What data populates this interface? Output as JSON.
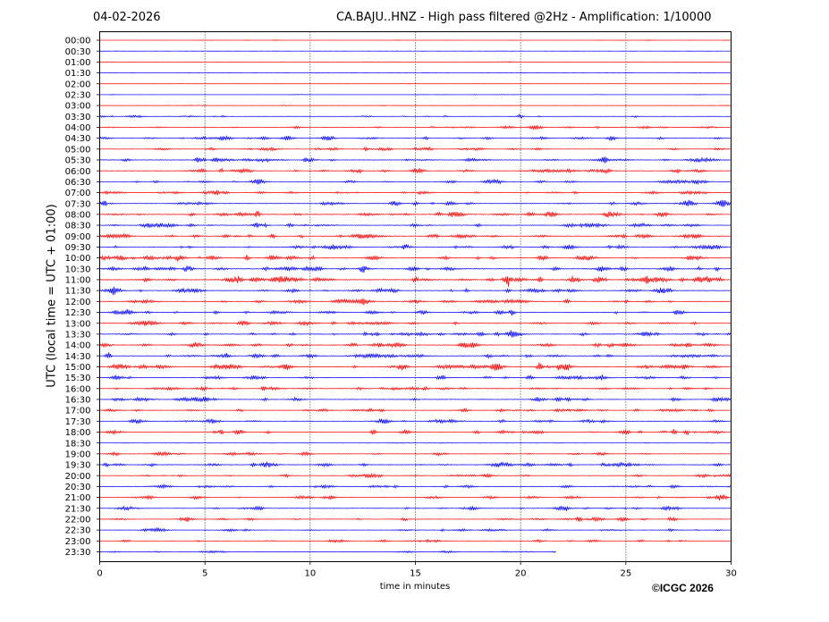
{
  "header": {
    "date": "04-02-2026",
    "title": "CA.BAJU..HNZ - High pass filtered @2Hz - Amplification: 1/10000"
  },
  "footer": {
    "copyright": "©ICGC 2026"
  },
  "chart_data": {
    "type": "line",
    "title": "CA.BAJU..HNZ - High pass filtered @2Hz - Amplification: 1/10000",
    "xlabel": "time in minutes",
    "ylabel": "UTC (local time = UTC + 01:00)",
    "xlim": [
      0,
      30
    ],
    "x_ticks": [
      0,
      5,
      10,
      15,
      20,
      25,
      30
    ],
    "x_tick_labels": [
      "0",
      "5",
      "10",
      "15",
      "20",
      "25",
      "30"
    ],
    "vertical_gridlines_at": [
      5,
      10,
      15,
      20,
      25
    ],
    "rows": [
      "00:00",
      "00:30",
      "01:00",
      "01:30",
      "02:00",
      "02:30",
      "03:00",
      "03:30",
      "04:00",
      "04:30",
      "05:00",
      "05:30",
      "06:00",
      "06:30",
      "07:00",
      "07:30",
      "08:00",
      "08:30",
      "09:00",
      "09:30",
      "10:00",
      "10:30",
      "11:00",
      "11:30",
      "12:00",
      "12:30",
      "13:00",
      "13:30",
      "14:00",
      "14:30",
      "15:00",
      "15:30",
      "16:00",
      "16:30",
      "17:00",
      "17:30",
      "18:00",
      "18:30",
      "19:00",
      "19:30",
      "20:00",
      "20:30",
      "21:00",
      "21:30",
      "22:00",
      "22:30",
      "23:00",
      "23:30"
    ],
    "row_colors": [
      "#ff0000",
      "#0000ff"
    ],
    "activity_level": [
      0.1,
      0.1,
      0.1,
      0.1,
      0.1,
      0.1,
      0.1,
      0.25,
      0.35,
      0.45,
      0.4,
      0.5,
      0.5,
      0.4,
      0.45,
      0.5,
      0.55,
      0.5,
      0.55,
      0.5,
      0.6,
      0.65,
      0.7,
      0.55,
      0.5,
      0.5,
      0.5,
      0.55,
      0.55,
      0.55,
      0.6,
      0.5,
      0.5,
      0.5,
      0.45,
      0.45,
      0.45,
      0.15,
      0.4,
      0.5,
      0.4,
      0.4,
      0.4,
      0.4,
      0.4,
      0.35,
      0.35,
      0.3
    ],
    "row_end_minute": [
      30,
      30,
      30,
      30,
      30,
      30,
      30,
      30,
      30,
      30,
      30,
      30,
      30,
      30,
      30,
      30,
      30,
      30,
      30,
      30,
      30,
      30,
      30,
      30,
      30,
      30,
      30,
      30,
      30,
      30,
      30,
      30,
      30,
      30,
      30,
      30,
      30,
      30,
      30,
      30,
      30,
      30,
      30,
      30,
      30,
      30,
      30,
      21.7
    ],
    "events": [
      {
        "row": "03:30",
        "minute": 20.0,
        "amp": 0.35
      },
      {
        "row": "04:30",
        "minute": 15.5,
        "amp": 0.35
      },
      {
        "row": "05:30",
        "minute": 4.6,
        "amp": 0.35
      },
      {
        "row": "06:00",
        "minute": 27.5,
        "amp": 0.3
      },
      {
        "row": "07:30",
        "minute": 15.0,
        "amp": 0.3
      },
      {
        "row": "08:00",
        "minute": 7.5,
        "amp": 0.5
      },
      {
        "row": "10:00",
        "minute": 7.0,
        "amp": 0.45
      },
      {
        "row": "10:30",
        "minute": 12.5,
        "amp": 0.45
      },
      {
        "row": "11:00",
        "minute": 15.0,
        "amp": 0.6
      },
      {
        "row": "11:00",
        "minute": 19.4,
        "amp": 1.0
      },
      {
        "row": "11:00",
        "minute": 20.9,
        "amp": 0.5
      },
      {
        "row": "12:00",
        "minute": 22.2,
        "amp": 0.55
      },
      {
        "row": "12:30",
        "minute": 19.6,
        "amp": 0.5
      },
      {
        "row": "14:30",
        "minute": 0.4,
        "amp": 0.6
      },
      {
        "row": "15:00",
        "minute": 14.3,
        "amp": 0.6
      },
      {
        "row": "15:00",
        "minute": 20.9,
        "amp": 0.8
      },
      {
        "row": "15:00",
        "minute": 21.9,
        "amp": 0.7
      },
      {
        "row": "15:00",
        "minute": 22.2,
        "amp": 0.6
      },
      {
        "row": "16:00",
        "minute": 7.8,
        "amp": 0.4
      },
      {
        "row": "18:00",
        "minute": 13.0,
        "amp": 0.45
      },
      {
        "row": "18:00",
        "minute": 17.9,
        "amp": 0.4
      },
      {
        "row": "18:00",
        "minute": 27.3,
        "amp": 0.45
      },
      {
        "row": "18:00",
        "minute": 27.9,
        "amp": 0.45
      },
      {
        "row": "19:30",
        "minute": 0.3,
        "amp": 0.35
      },
      {
        "row": "19:30",
        "minute": 7.3,
        "amp": 0.35
      }
    ]
  }
}
